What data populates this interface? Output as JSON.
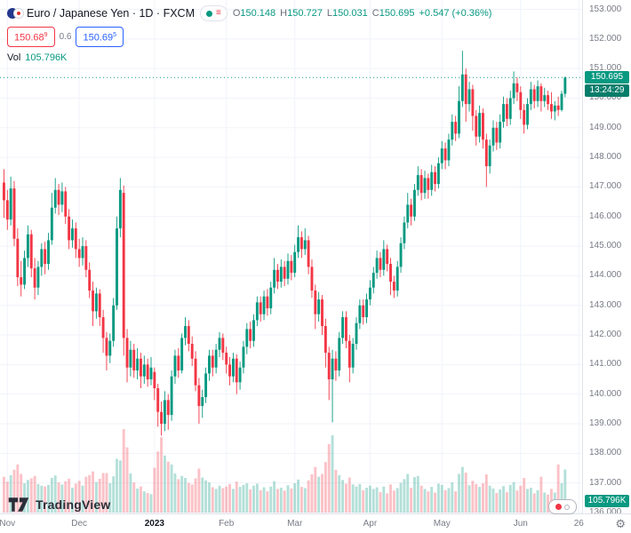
{
  "header": {
    "title": "Euro / Japanese Yen · 1D · FXCM",
    "ohlc": {
      "o_label": "O",
      "o_value": "150.148",
      "h_label": "H",
      "h_value": "150.727",
      "l_label": "L",
      "l_value": "150.031",
      "c_label": "C",
      "c_value": "150.695",
      "change": "+0.547 (+0.36%)"
    },
    "bid": {
      "main": "150.68",
      "sup": "9"
    },
    "spread": "0.6",
    "ask": {
      "main": "150.69",
      "sup": "5"
    },
    "volume_label": "Vol",
    "volume_value": "105.796K"
  },
  "price_scale": {
    "tick_labels": [
      "153.000",
      "152.000",
      "151.000",
      "150.000",
      "149.000",
      "148.000",
      "147.000",
      "146.000",
      "145.000",
      "144.000",
      "143.000",
      "142.000",
      "141.000",
      "140.000",
      "139.000",
      "138.000",
      "137.000",
      "136.000"
    ],
    "current_price": "150.695",
    "countdown": "13:24:29",
    "volume_badge": "105.796K"
  },
  "time_axis": {
    "labels": [
      {
        "text": "Nov",
        "idx": 1
      },
      {
        "text": "Dec",
        "idx": 22
      },
      {
        "text": "2023",
        "idx": 44,
        "year": true
      },
      {
        "text": "Feb",
        "idx": 65
      },
      {
        "text": "Mar",
        "idx": 85
      },
      {
        "text": "Apr",
        "idx": 107
      },
      {
        "text": "May",
        "idx": 128
      },
      {
        "text": "Jun",
        "idx": 151
      },
      {
        "text": "26",
        "idx": 168
      }
    ]
  },
  "footer": {
    "logo_text": "TradingView"
  },
  "colors": {
    "up": "#089981",
    "down": "#F23645",
    "up_vol": "rgba(8,153,129,0.30)",
    "down_vol": "rgba(242,54,69,0.30)",
    "grid": "#F0F3FA",
    "axis_text": "#787B86",
    "bid_red": "#F23645",
    "ask_blue": "#2962FF",
    "text_dark": "#131722",
    "countdown_bg": "#067d6b"
  },
  "chart_data": {
    "type": "candlestick",
    "title": "Euro / Japanese Yen, 1D, FXCM",
    "y_axis": {
      "min": 136,
      "max": 153,
      "step": 1
    },
    "price_line": 150.695,
    "last": {
      "open": 150.148,
      "high": 150.727,
      "low": 150.031,
      "close": 150.695,
      "change": 0.547,
      "change_pct": 0.36,
      "volume": "105.796K"
    },
    "columns": [
      "open",
      "high",
      "low",
      "close",
      "volume_k"
    ],
    "candles": [
      [
        147.15,
        147.6,
        145.95,
        146.55,
        88
      ],
      [
        146.55,
        146.9,
        145.55,
        145.9,
        76
      ],
      [
        145.9,
        147.35,
        145.7,
        146.95,
        92
      ],
      [
        146.95,
        147.2,
        145.0,
        145.25,
        105
      ],
      [
        145.25,
        145.6,
        143.65,
        143.95,
        118
      ],
      [
        143.95,
        144.5,
        143.3,
        143.7,
        95
      ],
      [
        143.7,
        144.85,
        143.55,
        144.6,
        72
      ],
      [
        144.6,
        145.7,
        144.3,
        145.4,
        80
      ],
      [
        145.4,
        145.55,
        143.95,
        144.25,
        84
      ],
      [
        144.25,
        144.6,
        143.2,
        143.6,
        90
      ],
      [
        143.6,
        144.5,
        143.35,
        144.3,
        70
      ],
      [
        144.3,
        145.1,
        144.0,
        144.9,
        66
      ],
      [
        144.9,
        145.15,
        144.05,
        144.4,
        64
      ],
      [
        144.4,
        145.45,
        144.2,
        145.2,
        68
      ],
      [
        145.2,
        146.8,
        145.05,
        146.3,
        85
      ],
      [
        146.3,
        147.3,
        146.1,
        146.9,
        91
      ],
      [
        146.9,
        147.1,
        146.05,
        146.4,
        74
      ],
      [
        146.4,
        147.15,
        146.15,
        146.85,
        69
      ],
      [
        146.85,
        147.0,
        145.75,
        146.0,
        77
      ],
      [
        146.0,
        146.25,
        144.9,
        145.2,
        83
      ],
      [
        145.2,
        145.9,
        144.95,
        145.6,
        61
      ],
      [
        145.6,
        145.8,
        144.6,
        144.9,
        71
      ],
      [
        144.9,
        145.25,
        144.3,
        144.6,
        78
      ],
      [
        144.6,
        145.3,
        144.35,
        145.0,
        66
      ],
      [
        145.0,
        145.2,
        143.95,
        144.2,
        88
      ],
      [
        144.2,
        144.45,
        143.25,
        143.5,
        92
      ],
      [
        143.5,
        143.8,
        142.3,
        142.8,
        101
      ],
      [
        142.8,
        143.6,
        142.55,
        143.4,
        75
      ],
      [
        143.4,
        143.55,
        142.3,
        142.6,
        83
      ],
      [
        142.6,
        142.85,
        141.4,
        141.9,
        97
      ],
      [
        141.9,
        142.1,
        140.8,
        141.3,
        97
      ],
      [
        141.3,
        142.05,
        141.05,
        141.8,
        72
      ],
      [
        141.8,
        143.25,
        141.6,
        143.0,
        89
      ],
      [
        143.0,
        146.0,
        142.85,
        145.6,
        132
      ],
      [
        145.6,
        147.3,
        145.3,
        146.9,
        128
      ],
      [
        146.8,
        147.05,
        141.3,
        141.9,
        205
      ],
      [
        141.9,
        142.2,
        140.4,
        140.9,
        160
      ],
      [
        140.9,
        141.8,
        140.6,
        141.5,
        96
      ],
      [
        141.5,
        141.7,
        140.55,
        140.8,
        74
      ],
      [
        140.8,
        141.55,
        140.5,
        141.2,
        59
      ],
      [
        141.2,
        141.4,
        140.2,
        140.6,
        64
      ],
      [
        140.6,
        141.3,
        140.35,
        141.0,
        52
      ],
      [
        141.0,
        141.2,
        140.25,
        140.5,
        48
      ],
      [
        140.5,
        141.25,
        140.3,
        140.9,
        45
      ],
      [
        140.75,
        140.9,
        139.8,
        140.2,
        110
      ],
      [
        140.2,
        140.35,
        138.9,
        139.4,
        150
      ],
      [
        139.4,
        139.75,
        138.6,
        139.0,
        185
      ],
      [
        139.0,
        140.1,
        138.75,
        139.8,
        140
      ],
      [
        139.8,
        140.0,
        138.8,
        139.3,
        125
      ],
      [
        139.3,
        140.8,
        139.1,
        140.6,
        118
      ],
      [
        140.6,
        141.5,
        140.35,
        141.3,
        96
      ],
      [
        141.3,
        141.55,
        140.55,
        140.8,
        82
      ],
      [
        140.8,
        142.05,
        140.7,
        141.9,
        90
      ],
      [
        141.9,
        142.6,
        141.65,
        142.3,
        85
      ],
      [
        142.3,
        142.5,
        141.45,
        141.7,
        73
      ],
      [
        141.7,
        141.95,
        140.95,
        141.2,
        69
      ],
      [
        141.2,
        141.45,
        140.1,
        140.3,
        84
      ],
      [
        140.3,
        140.55,
        139.0,
        139.6,
        108
      ],
      [
        139.6,
        140.15,
        139.2,
        139.9,
        86
      ],
      [
        139.9,
        140.9,
        139.7,
        140.7,
        79
      ],
      [
        140.7,
        141.5,
        140.45,
        141.3,
        74
      ],
      [
        141.3,
        141.5,
        140.6,
        140.9,
        62
      ],
      [
        140.9,
        141.7,
        140.7,
        141.5,
        58
      ],
      [
        141.5,
        142.1,
        141.25,
        141.9,
        66
      ],
      [
        141.9,
        142.05,
        141.15,
        141.4,
        60
      ],
      [
        141.4,
        141.6,
        140.7,
        141.0,
        64
      ],
      [
        141.0,
        141.25,
        140.3,
        140.6,
        70
      ],
      [
        140.6,
        141.4,
        140.4,
        141.2,
        58
      ],
      [
        141.2,
        141.35,
        140.0,
        140.4,
        76
      ],
      [
        140.4,
        141.1,
        140.15,
        140.9,
        63
      ],
      [
        140.9,
        141.8,
        140.7,
        141.6,
        68
      ],
      [
        141.6,
        142.4,
        141.35,
        142.2,
        72
      ],
      [
        142.2,
        142.45,
        141.55,
        141.8,
        57
      ],
      [
        141.8,
        142.7,
        141.6,
        142.5,
        66
      ],
      [
        142.5,
        143.3,
        142.3,
        143.1,
        71
      ],
      [
        143.1,
        143.3,
        142.45,
        142.7,
        55
      ],
      [
        142.7,
        143.5,
        142.5,
        143.3,
        62
      ],
      [
        143.3,
        143.55,
        142.65,
        142.9,
        52
      ],
      [
        142.9,
        143.8,
        142.7,
        143.6,
        64
      ],
      [
        143.6,
        144.6,
        143.4,
        144.2,
        77
      ],
      [
        144.2,
        144.4,
        143.55,
        143.8,
        58
      ],
      [
        143.8,
        144.55,
        143.6,
        144.3,
        61
      ],
      [
        144.3,
        144.5,
        143.65,
        143.9,
        54
      ],
      [
        143.9,
        144.75,
        143.7,
        144.5,
        67
      ],
      [
        144.5,
        144.7,
        143.85,
        144.1,
        59
      ],
      [
        144.1,
        145.05,
        143.95,
        144.8,
        72
      ],
      [
        144.8,
        145.7,
        144.6,
        145.3,
        81
      ],
      [
        145.3,
        145.5,
        144.6,
        144.9,
        63
      ],
      [
        144.9,
        145.6,
        144.7,
        145.2,
        60
      ],
      [
        145.2,
        145.35,
        144.05,
        144.3,
        79
      ],
      [
        144.3,
        144.55,
        143.25,
        143.5,
        94
      ],
      [
        143.5,
        143.7,
        142.2,
        142.7,
        112
      ],
      [
        142.7,
        143.45,
        142.45,
        143.2,
        88
      ],
      [
        143.2,
        143.35,
        142.0,
        142.3,
        95
      ],
      [
        142.3,
        142.55,
        140.9,
        141.4,
        124
      ],
      [
        141.4,
        141.6,
        139.8,
        140.5,
        168
      ],
      [
        140.5,
        141.5,
        139.05,
        141.2,
        190
      ],
      [
        141.2,
        141.45,
        140.45,
        140.8,
        105
      ],
      [
        140.8,
        142.1,
        140.6,
        141.9,
        92
      ],
      [
        141.9,
        142.8,
        141.7,
        142.6,
        80
      ],
      [
        142.6,
        142.8,
        141.55,
        141.8,
        71
      ],
      [
        141.8,
        142.0,
        140.4,
        140.9,
        86
      ],
      [
        140.9,
        141.9,
        140.7,
        141.7,
        69
      ],
      [
        141.7,
        142.6,
        141.5,
        142.4,
        64
      ],
      [
        142.4,
        143.2,
        142.2,
        143.0,
        70
      ],
      [
        143.0,
        143.2,
        142.35,
        142.6,
        55
      ],
      [
        142.6,
        143.4,
        142.4,
        143.2,
        61
      ],
      [
        143.2,
        143.85,
        143.0,
        143.6,
        66
      ],
      [
        143.6,
        144.3,
        143.4,
        144.1,
        58
      ],
      [
        144.1,
        144.85,
        143.9,
        144.6,
        62
      ],
      [
        144.6,
        144.8,
        143.95,
        144.2,
        50
      ],
      [
        144.2,
        145.2,
        144.0,
        144.9,
        64
      ],
      [
        144.9,
        145.05,
        144.15,
        144.4,
        47
      ],
      [
        144.4,
        144.6,
        143.35,
        143.8,
        69
      ],
      [
        143.8,
        144.0,
        143.25,
        143.5,
        54
      ],
      [
        143.5,
        144.5,
        143.3,
        144.3,
        60
      ],
      [
        144.3,
        145.3,
        144.1,
        145.1,
        73
      ],
      [
        145.1,
        146.0,
        144.9,
        145.8,
        82
      ],
      [
        145.8,
        146.8,
        145.6,
        146.4,
        95
      ],
      [
        146.4,
        146.6,
        145.7,
        146.0,
        61
      ],
      [
        146.0,
        147.1,
        145.85,
        146.9,
        87
      ],
      [
        146.9,
        147.7,
        146.7,
        147.4,
        90
      ],
      [
        147.4,
        147.6,
        146.55,
        146.8,
        66
      ],
      [
        146.8,
        147.55,
        146.6,
        147.3,
        58
      ],
      [
        147.3,
        147.45,
        146.6,
        146.9,
        52
      ],
      [
        146.9,
        147.75,
        146.7,
        147.5,
        63
      ],
      [
        147.5,
        147.7,
        146.85,
        147.1,
        49
      ],
      [
        147.1,
        148.0,
        146.95,
        147.8,
        71
      ],
      [
        147.8,
        148.55,
        147.6,
        148.3,
        68
      ],
      [
        148.3,
        148.5,
        147.6,
        147.9,
        55
      ],
      [
        147.9,
        148.8,
        147.7,
        148.6,
        60
      ],
      [
        148.6,
        149.45,
        148.4,
        149.2,
        74
      ],
      [
        149.2,
        149.4,
        148.55,
        148.8,
        52
      ],
      [
        148.8,
        150.4,
        148.65,
        149.9,
        95
      ],
      [
        149.9,
        151.6,
        149.7,
        150.8,
        112
      ],
      [
        150.8,
        151.0,
        149.2,
        149.8,
        98
      ],
      [
        149.8,
        150.55,
        149.55,
        150.3,
        67
      ],
      [
        150.3,
        150.45,
        148.9,
        149.4,
        78
      ],
      [
        149.4,
        149.6,
        148.4,
        148.7,
        70
      ],
      [
        148.7,
        149.75,
        148.5,
        149.5,
        63
      ],
      [
        149.5,
        149.65,
        148.3,
        148.6,
        72
      ],
      [
        148.6,
        148.8,
        147.0,
        147.7,
        94
      ],
      [
        147.7,
        148.6,
        147.45,
        148.4,
        66
      ],
      [
        148.4,
        149.25,
        148.2,
        149.0,
        59
      ],
      [
        149.0,
        149.2,
        148.25,
        148.5,
        48
      ],
      [
        148.5,
        149.45,
        148.3,
        149.2,
        57
      ],
      [
        149.2,
        150.05,
        149.0,
        149.8,
        65
      ],
      [
        149.8,
        150.0,
        149.05,
        149.3,
        50
      ],
      [
        149.3,
        150.25,
        149.1,
        150.0,
        68
      ],
      [
        150.0,
        150.9,
        149.8,
        150.5,
        75
      ],
      [
        150.5,
        150.7,
        149.9,
        150.2,
        54
      ],
      [
        150.2,
        150.4,
        149.3,
        149.6,
        66
      ],
      [
        149.6,
        149.8,
        148.8,
        149.1,
        85
      ],
      [
        149.1,
        150.0,
        148.95,
        149.8,
        58
      ],
      [
        149.8,
        150.55,
        149.6,
        150.3,
        61
      ],
      [
        150.3,
        150.45,
        149.65,
        149.9,
        47
      ],
      [
        149.9,
        150.6,
        149.7,
        150.4,
        55
      ],
      [
        150.4,
        150.5,
        149.55,
        149.9,
        88
      ],
      [
        149.9,
        150.35,
        149.7,
        150.1,
        49
      ],
      [
        150.1,
        150.25,
        149.6,
        149.8,
        44
      ],
      [
        149.8,
        150.2,
        149.3,
        149.55,
        58
      ],
      [
        149.55,
        149.9,
        149.25,
        149.75,
        49
      ],
      [
        149.75,
        150.05,
        149.4,
        149.6,
        118
      ],
      [
        149.6,
        150.25,
        149.55,
        150.148,
        72
      ],
      [
        150.148,
        150.727,
        150.031,
        150.695,
        105.796
      ]
    ]
  }
}
